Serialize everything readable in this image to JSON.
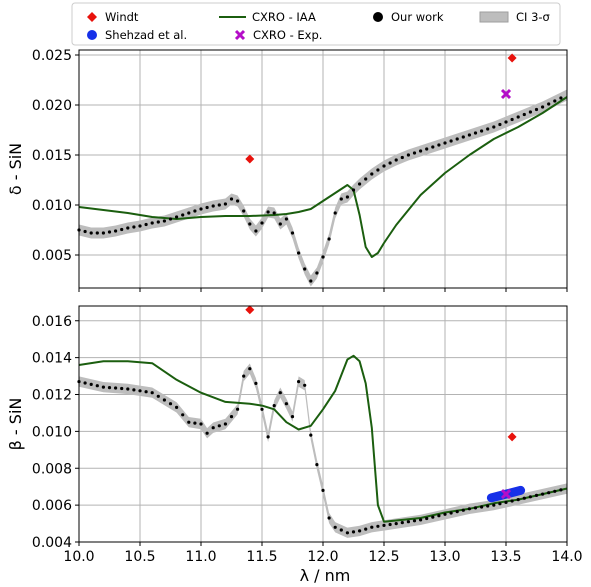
{
  "chart_data": [
    {
      "type": "line",
      "xlabel": "λ / nm",
      "ylabel": "δ - SiN",
      "xlim": [
        10.0,
        14.0
      ],
      "ylim": [
        0.0017,
        0.0255
      ],
      "x_ticks": [
        10.0,
        10.5,
        11.0,
        11.5,
        12.0,
        12.5,
        13.0,
        13.5,
        14.0
      ],
      "y_ticks": [
        0.005,
        0.01,
        0.015,
        0.02,
        0.025
      ],
      "y_tick_labels": [
        "0.005",
        "0.010",
        "0.015",
        "0.020",
        "0.025"
      ],
      "grid": true,
      "series": [
        {
          "name": "CXRO - IAA",
          "color": "#1b5e0f",
          "style": "line",
          "x": [
            10.0,
            10.2,
            10.4,
            10.6,
            10.8,
            11.0,
            11.2,
            11.4,
            11.6,
            11.7,
            11.8,
            11.9,
            12.0,
            12.1,
            12.2,
            12.25,
            12.3,
            12.35,
            12.4,
            12.45,
            12.5,
            12.6,
            12.8,
            13.0,
            13.2,
            13.4,
            13.6,
            13.8,
            14.0
          ],
          "y": [
            0.0098,
            0.0095,
            0.0092,
            0.0088,
            0.0086,
            0.0088,
            0.0089,
            0.0089,
            0.009,
            0.0091,
            0.0093,
            0.0096,
            0.0104,
            0.0112,
            0.012,
            0.0115,
            0.009,
            0.0058,
            0.0048,
            0.0052,
            0.0062,
            0.008,
            0.011,
            0.0132,
            0.015,
            0.0166,
            0.0178,
            0.0192,
            0.0208
          ]
        },
        {
          "name": "Our work",
          "color": "#000000",
          "style": "dotted",
          "x": [
            10.0,
            10.1,
            10.2,
            10.3,
            10.4,
            10.5,
            10.6,
            10.7,
            10.8,
            10.9,
            11.0,
            11.1,
            11.2,
            11.25,
            11.3,
            11.35,
            11.4,
            11.45,
            11.5,
            11.55,
            11.6,
            11.65,
            11.7,
            11.75,
            11.8,
            11.85,
            11.9,
            11.95,
            12.0,
            12.05,
            12.1,
            12.15,
            12.2,
            12.25,
            12.3,
            12.4,
            12.5,
            12.6,
            12.7,
            12.8,
            12.9,
            13.0,
            13.2,
            13.4,
            13.6,
            13.8,
            14.0
          ],
          "y": [
            0.0075,
            0.0072,
            0.0072,
            0.0074,
            0.0077,
            0.0079,
            0.0082,
            0.0084,
            0.0088,
            0.0092,
            0.0096,
            0.0099,
            0.0101,
            0.0106,
            0.0104,
            0.0094,
            0.0081,
            0.0074,
            0.0082,
            0.0093,
            0.0092,
            0.0081,
            0.0086,
            0.0072,
            0.0052,
            0.0036,
            0.0024,
            0.0032,
            0.0048,
            0.0066,
            0.0092,
            0.0106,
            0.0108,
            0.0115,
            0.0121,
            0.0131,
            0.0139,
            0.0145,
            0.015,
            0.0154,
            0.0158,
            0.0162,
            0.017,
            0.0178,
            0.0188,
            0.0198,
            0.021
          ]
        },
        {
          "name": "Windt",
          "color": "#e8120c",
          "style": "diamond",
          "x": [
            11.4,
            13.55
          ],
          "y": [
            0.0146,
            0.0247
          ]
        },
        {
          "name": "CXRO - Exp.",
          "color": "#b40ec8",
          "style": "x",
          "x": [
            13.5
          ],
          "y": [
            0.0211
          ]
        }
      ]
    },
    {
      "type": "line",
      "xlabel": "λ / nm",
      "ylabel": "β - SiN",
      "xlim": [
        10.0,
        14.0
      ],
      "ylim": [
        0.004,
        0.0168
      ],
      "x_ticks": [
        10.0,
        10.5,
        11.0,
        11.5,
        12.0,
        12.5,
        13.0,
        13.5,
        14.0
      ],
      "x_tick_labels": [
        "10.0",
        "10.5",
        "11.0",
        "11.5",
        "12.0",
        "12.5",
        "13.0",
        "13.5",
        "14.0"
      ],
      "y_ticks": [
        0.004,
        0.006,
        0.008,
        0.01,
        0.012,
        0.014,
        0.016
      ],
      "y_tick_labels": [
        "0.004",
        "0.006",
        "0.008",
        "0.010",
        "0.012",
        "0.014",
        "0.016"
      ],
      "grid": true,
      "series": [
        {
          "name": "CXRO - IAA",
          "color": "#1b5e0f",
          "style": "line",
          "x": [
            10.0,
            10.2,
            10.4,
            10.6,
            10.8,
            11.0,
            11.2,
            11.4,
            11.5,
            11.6,
            11.7,
            11.8,
            11.9,
            12.0,
            12.1,
            12.2,
            12.25,
            12.3,
            12.35,
            12.4,
            12.45,
            12.5,
            12.8,
            13.0,
            13.2,
            13.4,
            13.6,
            13.8,
            14.0
          ],
          "y": [
            0.0136,
            0.0138,
            0.0138,
            0.0137,
            0.0128,
            0.0121,
            0.0116,
            0.0115,
            0.0114,
            0.0112,
            0.0105,
            0.0101,
            0.0103,
            0.0112,
            0.0122,
            0.0139,
            0.0141,
            0.0138,
            0.0126,
            0.0102,
            0.006,
            0.0051,
            0.0053,
            0.0056,
            0.0058,
            0.0061,
            0.0063,
            0.0066,
            0.0069
          ]
        },
        {
          "name": "Our work",
          "color": "#000000",
          "style": "dotted",
          "x": [
            10.0,
            10.2,
            10.4,
            10.6,
            10.8,
            10.9,
            11.0,
            11.05,
            11.1,
            11.2,
            11.3,
            11.35,
            11.4,
            11.45,
            11.5,
            11.55,
            11.6,
            11.65,
            11.7,
            11.75,
            11.8,
            11.85,
            11.9,
            11.95,
            12.0,
            12.05,
            12.1,
            12.2,
            12.3,
            12.4,
            12.5,
            12.6,
            12.8,
            13.0,
            13.2,
            13.4,
            13.6,
            13.8,
            14.0
          ],
          "y": [
            0.0127,
            0.0124,
            0.0123,
            0.0121,
            0.0113,
            0.0105,
            0.0104,
            0.0099,
            0.0102,
            0.0104,
            0.0112,
            0.013,
            0.0134,
            0.0126,
            0.0112,
            0.0097,
            0.0114,
            0.0121,
            0.0115,
            0.0108,
            0.0127,
            0.0125,
            0.0098,
            0.0082,
            0.0068,
            0.0053,
            0.0048,
            0.0045,
            0.0046,
            0.0048,
            0.0049,
            0.005,
            0.0052,
            0.0055,
            0.0058,
            0.006,
            0.0063,
            0.0066,
            0.0069
          ]
        },
        {
          "name": "Windt",
          "color": "#e8120c",
          "style": "diamond",
          "x": [
            11.4,
            13.55
          ],
          "y": [
            0.0166,
            0.0097
          ]
        },
        {
          "name": "CXRO - Exp.",
          "color": "#b40ec8",
          "style": "x",
          "x": [
            13.5
          ],
          "y": [
            0.0066
          ]
        },
        {
          "name": "Shehzad et al.",
          "color": "#1630e8",
          "style": "thick-line",
          "x": [
            13.38,
            13.5,
            13.62
          ],
          "y": [
            0.0064,
            0.0066,
            0.0068
          ]
        }
      ]
    }
  ],
  "legend": {
    "placement": "top-center",
    "entries": [
      {
        "label": "Windt",
        "marker": "diamond",
        "color": "#e8120c"
      },
      {
        "label": "Shehzad et al.",
        "marker": "circle",
        "color": "#1630e8"
      },
      {
        "label": "CXRO - IAA",
        "marker": "line",
        "color": "#1b5e0f"
      },
      {
        "label": "CXRO - Exp.",
        "marker": "x",
        "color": "#b40ec8"
      },
      {
        "label": "Our work",
        "marker": "circle",
        "color": "#000000"
      },
      {
        "label": "CI 3-σ",
        "marker": "band",
        "color": "#bdbdbd"
      }
    ]
  }
}
